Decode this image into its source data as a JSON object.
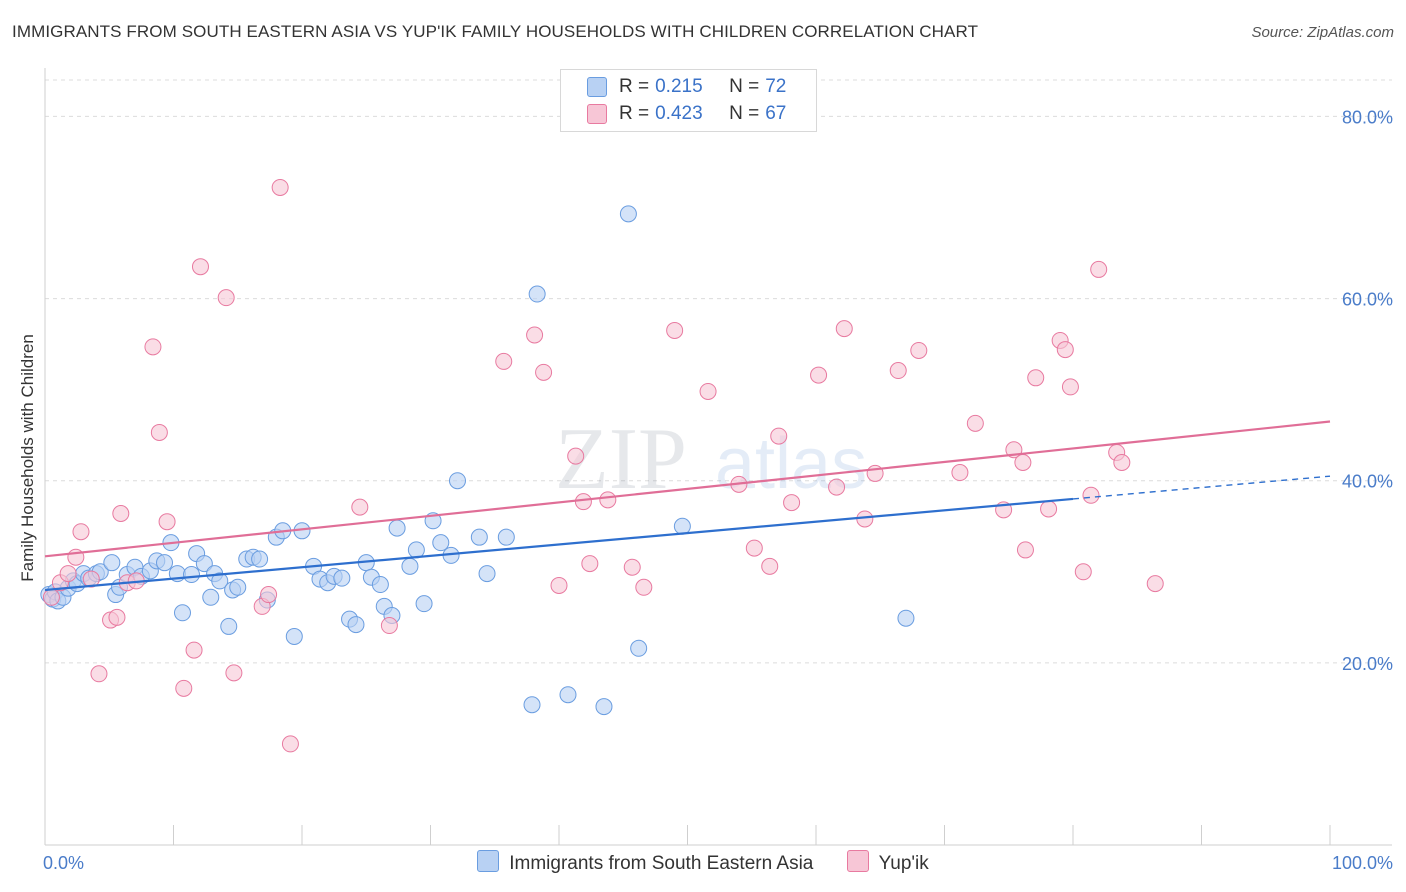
{
  "header": {
    "title": "IMMIGRANTS FROM SOUTH EASTERN ASIA VS YUP'IK FAMILY HOUSEHOLDS WITH CHILDREN CORRELATION CHART",
    "source": "Source: ZipAtlas.com"
  },
  "legend": {
    "rows": [
      {
        "r_label": "R =",
        "r_value": "0.215",
        "n_label": "N =",
        "n_value": "72"
      },
      {
        "r_label": "R =",
        "r_value": "0.423",
        "n_label": "N =",
        "n_value": "67"
      }
    ]
  },
  "watermark": {
    "zip": "ZIP",
    "atlas": "atlas"
  },
  "chart_data": {
    "type": "scatter",
    "title": "IMMIGRANTS FROM SOUTH EASTERN ASIA VS YUP'IK FAMILY HOUSEHOLDS WITH CHILDREN CORRELATION CHART",
    "xlabel": "",
    "ylabel": "Family Households with Children",
    "xlim": [
      0,
      100
    ],
    "ylim": [
      0,
      84
    ],
    "x_tick_labels": [
      {
        "value": 0,
        "label": "0.0%"
      },
      {
        "value": 100,
        "label": "100.0%"
      }
    ],
    "y_tick_labels": [
      {
        "value": 20,
        "label": "20.0%"
      },
      {
        "value": 40,
        "label": "40.0%"
      },
      {
        "value": 60,
        "label": "60.0%"
      },
      {
        "value": 80,
        "label": "80.0%"
      }
    ],
    "grid": true,
    "legend_position": "top-center",
    "colors": {
      "blue": "#6a9de0",
      "blue_fill": "#b8d1f3",
      "pink": "#e87aa0",
      "pink_fill": "#f7c6d6",
      "blue_line": "#2e6fce",
      "pink_line": "#e06e97"
    },
    "series": [
      {
        "name": "Immigrants from South Eastern Asia",
        "color": "blue",
        "r": 0.215,
        "n": 72,
        "trend": {
          "x0": 0,
          "y0": 28.0,
          "x1": 80,
          "y1": 38.0,
          "dashed_to_x": 100,
          "dashed_to_y": 40.5
        },
        "points": [
          [
            0.3,
            27.5
          ],
          [
            0.6,
            27.0
          ],
          [
            0.8,
            27.8
          ],
          [
            1.0,
            26.8
          ],
          [
            1.4,
            27.2
          ],
          [
            1.8,
            28.2
          ],
          [
            2.2,
            29.0
          ],
          [
            2.5,
            28.7
          ],
          [
            3.0,
            29.8
          ],
          [
            3.4,
            29.3
          ],
          [
            4.0,
            29.8
          ],
          [
            4.3,
            30.0
          ],
          [
            5.2,
            31.0
          ],
          [
            5.5,
            27.5
          ],
          [
            5.8,
            28.3
          ],
          [
            6.4,
            29.7
          ],
          [
            7.0,
            30.5
          ],
          [
            7.5,
            29.5
          ],
          [
            8.2,
            30.1
          ],
          [
            8.7,
            31.2
          ],
          [
            9.3,
            31.0
          ],
          [
            9.8,
            33.2
          ],
          [
            10.3,
            29.8
          ],
          [
            10.7,
            25.5
          ],
          [
            11.4,
            29.7
          ],
          [
            11.8,
            32.0
          ],
          [
            12.4,
            30.9
          ],
          [
            12.9,
            27.2
          ],
          [
            13.2,
            29.8
          ],
          [
            13.6,
            29.0
          ],
          [
            14.3,
            24.0
          ],
          [
            14.6,
            28.0
          ],
          [
            15.0,
            28.3
          ],
          [
            15.7,
            31.4
          ],
          [
            16.2,
            31.6
          ],
          [
            16.7,
            31.4
          ],
          [
            17.3,
            26.9
          ],
          [
            18.0,
            33.8
          ],
          [
            18.5,
            34.5
          ],
          [
            19.4,
            22.9
          ],
          [
            20.0,
            34.5
          ],
          [
            20.9,
            30.6
          ],
          [
            21.4,
            29.2
          ],
          [
            22.0,
            28.8
          ],
          [
            22.5,
            29.5
          ],
          [
            23.1,
            29.3
          ],
          [
            23.7,
            24.8
          ],
          [
            24.2,
            24.2
          ],
          [
            25.0,
            31.0
          ],
          [
            25.4,
            29.4
          ],
          [
            26.1,
            28.6
          ],
          [
            26.4,
            26.2
          ],
          [
            27.0,
            25.2
          ],
          [
            27.4,
            34.8
          ],
          [
            28.4,
            30.6
          ],
          [
            28.9,
            32.4
          ],
          [
            29.5,
            26.5
          ],
          [
            30.2,
            35.6
          ],
          [
            30.8,
            33.2
          ],
          [
            31.6,
            31.8
          ],
          [
            32.1,
            40.0
          ],
          [
            33.8,
            33.8
          ],
          [
            34.4,
            29.8
          ],
          [
            35.9,
            33.8
          ],
          [
            37.9,
            15.4
          ],
          [
            38.3,
            60.5
          ],
          [
            40.7,
            16.5
          ],
          [
            43.5,
            15.2
          ],
          [
            45.4,
            69.3
          ],
          [
            46.2,
            21.6
          ],
          [
            49.6,
            35.0
          ],
          [
            67.0,
            24.9
          ]
        ]
      },
      {
        "name": "Yup'ik",
        "color": "pink",
        "r": 0.423,
        "n": 67,
        "trend": {
          "x0": 0,
          "y0": 31.7,
          "x1": 100,
          "y1": 46.5
        },
        "points": [
          [
            0.5,
            27.2
          ],
          [
            1.2,
            28.8
          ],
          [
            1.8,
            29.8
          ],
          [
            2.4,
            31.6
          ],
          [
            2.8,
            34.4
          ],
          [
            3.6,
            29.2
          ],
          [
            4.2,
            18.8
          ],
          [
            5.1,
            24.7
          ],
          [
            5.6,
            25.0
          ],
          [
            5.9,
            36.4
          ],
          [
            6.4,
            28.8
          ],
          [
            7.1,
            29.0
          ],
          [
            8.4,
            54.7
          ],
          [
            8.9,
            45.3
          ],
          [
            9.5,
            35.5
          ],
          [
            10.8,
            17.2
          ],
          [
            11.6,
            21.4
          ],
          [
            12.1,
            63.5
          ],
          [
            14.1,
            60.1
          ],
          [
            14.7,
            18.9
          ],
          [
            16.9,
            26.2
          ],
          [
            17.4,
            27.5
          ],
          [
            18.3,
            72.2
          ],
          [
            19.1,
            11.1
          ],
          [
            24.5,
            37.1
          ],
          [
            26.8,
            24.1
          ],
          [
            35.7,
            53.1
          ],
          [
            38.1,
            56.0
          ],
          [
            38.8,
            51.9
          ],
          [
            40.0,
            28.5
          ],
          [
            41.3,
            42.7
          ],
          [
            41.9,
            37.7
          ],
          [
            42.4,
            30.9
          ],
          [
            43.8,
            37.9
          ],
          [
            45.7,
            30.5
          ],
          [
            46.6,
            28.3
          ],
          [
            49.0,
            56.5
          ],
          [
            51.6,
            49.8
          ],
          [
            54.0,
            39.6
          ],
          [
            55.2,
            32.6
          ],
          [
            56.4,
            30.6
          ],
          [
            57.1,
            44.9
          ],
          [
            58.1,
            37.6
          ],
          [
            60.2,
            51.6
          ],
          [
            61.6,
            39.3
          ],
          [
            62.2,
            56.7
          ],
          [
            63.8,
            35.8
          ],
          [
            64.6,
            40.8
          ],
          [
            66.4,
            52.1
          ],
          [
            68.0,
            54.3
          ],
          [
            71.2,
            40.9
          ],
          [
            72.4,
            46.3
          ],
          [
            74.6,
            36.8
          ],
          [
            75.4,
            43.4
          ],
          [
            76.1,
            42.0
          ],
          [
            76.3,
            32.4
          ],
          [
            77.1,
            51.3
          ],
          [
            78.1,
            36.9
          ],
          [
            79.0,
            55.4
          ],
          [
            79.4,
            54.4
          ],
          [
            79.8,
            50.3
          ],
          [
            80.8,
            30.0
          ],
          [
            81.4,
            38.4
          ],
          [
            82.0,
            63.2
          ],
          [
            83.4,
            43.1
          ],
          [
            83.8,
            42.0
          ],
          [
            86.4,
            28.7
          ]
        ]
      }
    ]
  }
}
